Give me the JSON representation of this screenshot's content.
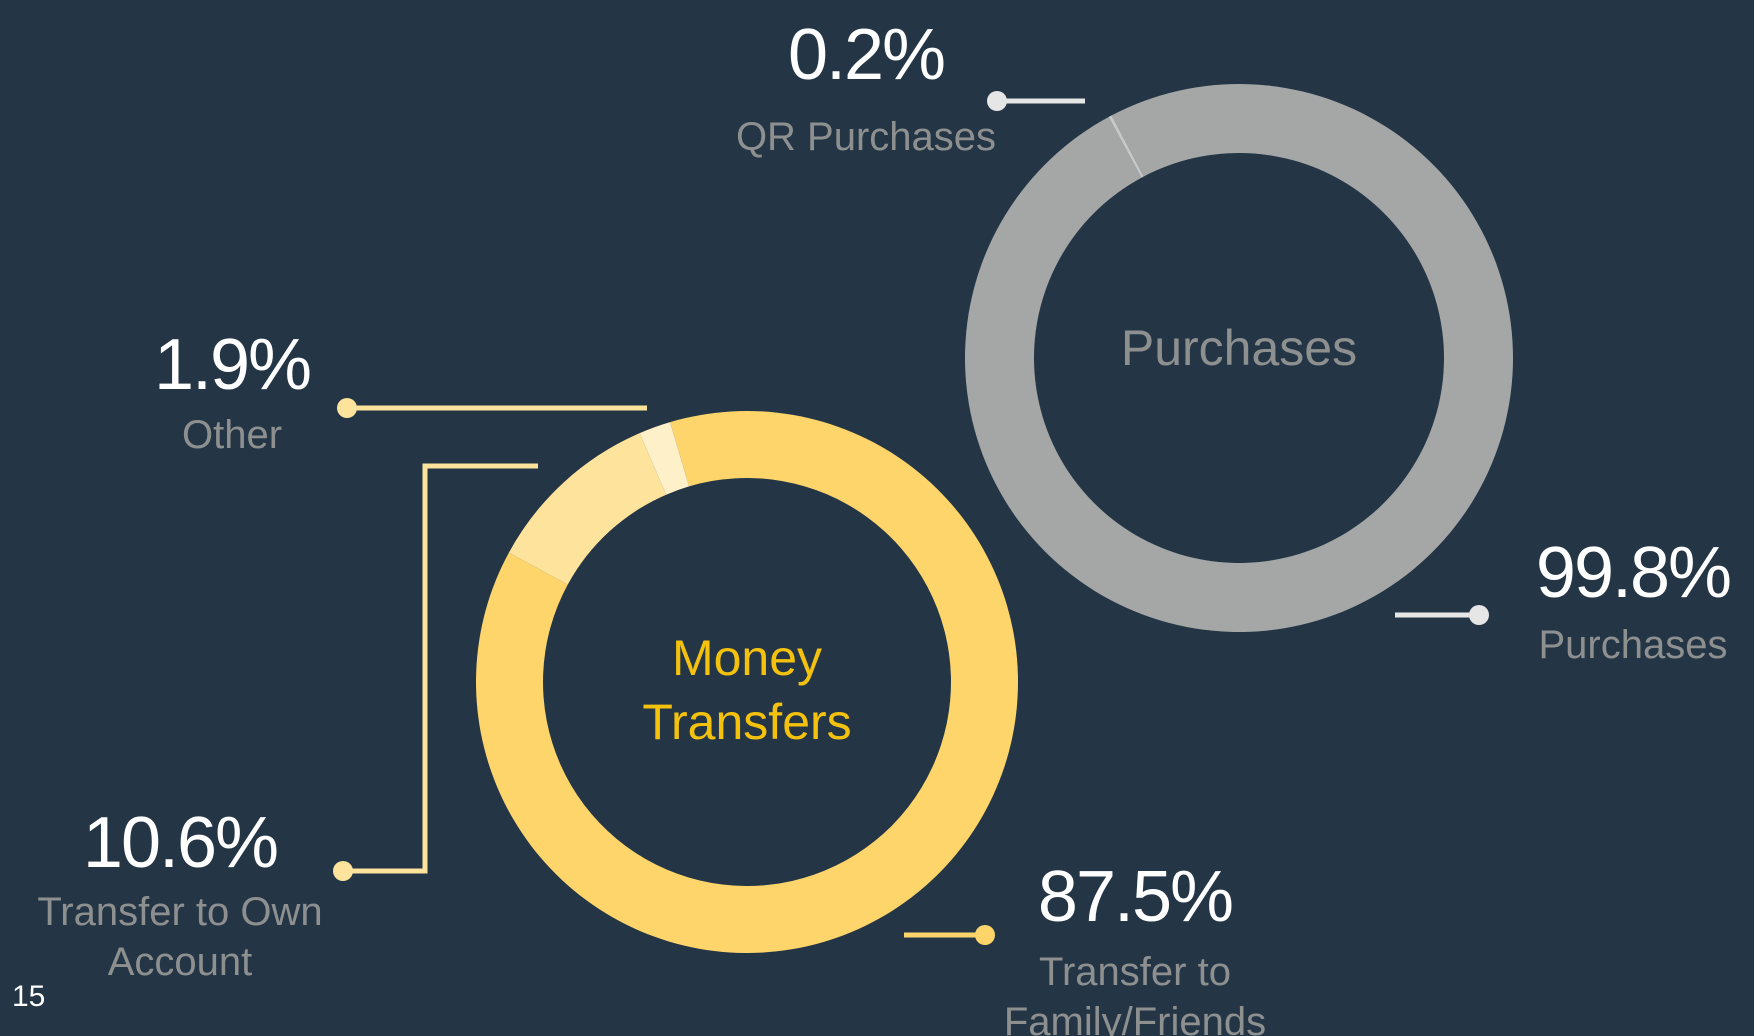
{
  "page_number": "15",
  "chart_data": [
    {
      "type": "pie",
      "donut": true,
      "title": "Money Transfers",
      "categories": [
        "Transfer to Family/Friends",
        "Transfer to Own Account",
        "Other"
      ],
      "values": [
        87.5,
        10.6,
        1.9
      ],
      "value_labels": [
        "87.5%",
        "10.6%",
        "1.9%"
      ],
      "colors": [
        "#fdd56b",
        "#fde39c",
        "#fef0c8"
      ],
      "startangle": -16.5
    },
    {
      "type": "pie",
      "donut": true,
      "title": "Purchases",
      "categories": [
        "Purchases",
        "QR Purchases"
      ],
      "values": [
        99.8,
        0.2
      ],
      "value_labels": [
        "99.8%",
        "0.2%"
      ],
      "colors": [
        "#a5a7a7",
        "#c6c8c8"
      ],
      "startangle": -27.7
    }
  ]
}
